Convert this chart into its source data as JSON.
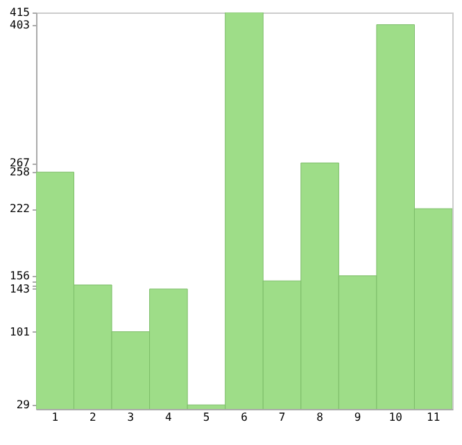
{
  "chart_data": {
    "type": "bar",
    "categories": [
      "1",
      "2",
      "3",
      "4",
      "5",
      "6",
      "7",
      "8",
      "9",
      "10",
      "11"
    ],
    "values": [
      258,
      147,
      101,
      143,
      29,
      415,
      151,
      267,
      156,
      403,
      222
    ],
    "color": "#9edd88",
    "ylim": [
      25,
      415
    ],
    "yticks": [
      29,
      101,
      143,
      {
        "value": 147,
        "label": null
      },
      {
        "value": 151,
        "label": null
      },
      156,
      222,
      258,
      267,
      403,
      415
    ],
    "grid": false
  }
}
